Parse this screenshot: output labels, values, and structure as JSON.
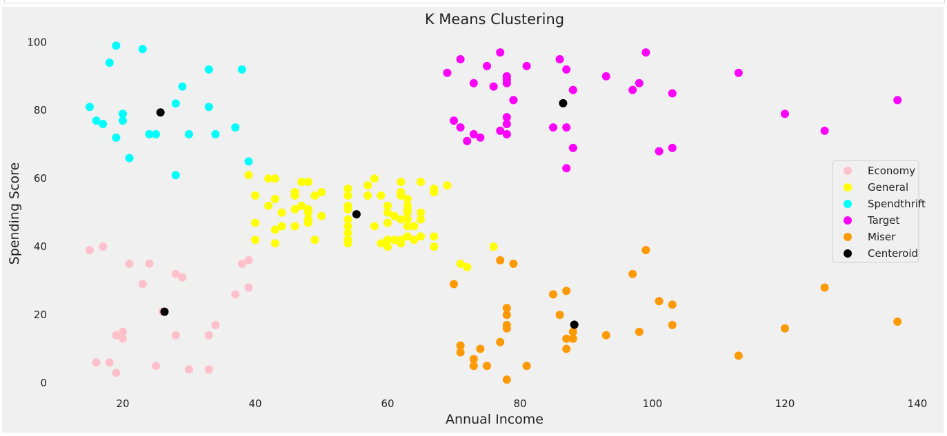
{
  "chart_data": {
    "type": "scatter",
    "title": "K Means Clustering",
    "xlabel": "Annual Income",
    "ylabel": "Spending Score",
    "xlim": [
      6,
      142
    ],
    "ylim": [
      -5,
      105
    ],
    "xticks": [
      20,
      40,
      60,
      80,
      100,
      120,
      140
    ],
    "yticks": [
      0,
      20,
      40,
      60,
      80,
      100
    ],
    "grid": false,
    "background": "#f0f0f0",
    "legend_position": "right",
    "series": [
      {
        "name": "Economy",
        "color": "#ffc0cb",
        "points": [
          [
            15,
            39
          ],
          [
            17,
            40
          ],
          [
            21,
            35
          ],
          [
            24,
            35
          ],
          [
            23,
            29
          ],
          [
            28,
            32
          ],
          [
            29,
            31
          ],
          [
            38,
            35
          ],
          [
            39,
            36
          ],
          [
            37,
            26
          ],
          [
            39,
            28
          ],
          [
            34,
            17
          ],
          [
            26,
            21
          ],
          [
            19,
            14
          ],
          [
            20,
            15
          ],
          [
            20,
            13
          ],
          [
            28,
            14
          ],
          [
            33,
            14
          ],
          [
            16,
            6
          ],
          [
            18,
            6
          ],
          [
            19,
            3
          ],
          [
            25,
            5
          ],
          [
            30,
            4
          ],
          [
            33,
            4
          ]
        ]
      },
      {
        "name": "General",
        "color": "#ffff00",
        "points": [
          [
            39,
            61
          ],
          [
            40,
            55
          ],
          [
            40,
            47
          ],
          [
            40,
            42
          ],
          [
            42,
            60
          ],
          [
            42,
            52
          ],
          [
            43,
            60
          ],
          [
            43,
            54
          ],
          [
            43,
            45
          ],
          [
            43,
            41
          ],
          [
            44,
            50
          ],
          [
            44,
            46
          ],
          [
            46,
            56
          ],
          [
            46,
            55
          ],
          [
            46,
            51
          ],
          [
            46,
            46
          ],
          [
            47,
            59
          ],
          [
            47,
            52
          ],
          [
            48,
            59
          ],
          [
            48,
            51
          ],
          [
            48,
            50
          ],
          [
            48,
            48
          ],
          [
            48,
            47
          ],
          [
            49,
            55
          ],
          [
            49,
            42
          ],
          [
            50,
            56
          ],
          [
            50,
            49
          ],
          [
            54,
            57
          ],
          [
            54,
            55
          ],
          [
            54,
            52
          ],
          [
            54,
            51
          ],
          [
            54,
            48
          ],
          [
            54,
            46
          ],
          [
            54,
            44
          ],
          [
            54,
            42
          ],
          [
            54,
            41
          ],
          [
            57,
            58
          ],
          [
            57,
            55
          ],
          [
            58,
            60
          ],
          [
            58,
            46
          ],
          [
            59,
            55
          ],
          [
            59,
            41
          ],
          [
            60,
            52
          ],
          [
            60,
            50
          ],
          [
            60,
            47
          ],
          [
            60,
            42
          ],
          [
            60,
            40
          ],
          [
            61,
            49
          ],
          [
            61,
            42
          ],
          [
            62,
            59
          ],
          [
            62,
            56
          ],
          [
            62,
            55
          ],
          [
            62,
            48
          ],
          [
            62,
            42
          ],
          [
            62,
            41
          ],
          [
            63,
            54
          ],
          [
            63,
            52
          ],
          [
            63,
            51
          ],
          [
            63,
            50
          ],
          [
            63,
            48
          ],
          [
            63,
            46
          ],
          [
            63,
            43
          ],
          [
            64,
            46
          ],
          [
            64,
            42
          ],
          [
            65,
            59
          ],
          [
            65,
            50
          ],
          [
            65,
            48
          ],
          [
            65,
            43
          ],
          [
            67,
            57
          ],
          [
            67,
            56
          ],
          [
            67,
            43
          ],
          [
            67,
            40
          ],
          [
            69,
            58
          ],
          [
            71,
            35
          ],
          [
            72,
            34
          ],
          [
            76,
            40
          ]
        ]
      },
      {
        "name": "Spendthrift",
        "color": "#00ffff",
        "points": [
          [
            15,
            81
          ],
          [
            16,
            77
          ],
          [
            17,
            76
          ],
          [
            18,
            94
          ],
          [
            19,
            99
          ],
          [
            19,
            72
          ],
          [
            20,
            77
          ],
          [
            20,
            79
          ],
          [
            21,
            66
          ],
          [
            23,
            98
          ],
          [
            24,
            73
          ],
          [
            25,
            73
          ],
          [
            28,
            82
          ],
          [
            28,
            61
          ],
          [
            29,
            87
          ],
          [
            30,
            73
          ],
          [
            33,
            92
          ],
          [
            33,
            81
          ],
          [
            34,
            73
          ],
          [
            37,
            75
          ],
          [
            38,
            92
          ],
          [
            39,
            65
          ]
        ]
      },
      {
        "name": "Target",
        "color": "#ff00ff",
        "points": [
          [
            69,
            91
          ],
          [
            70,
            77
          ],
          [
            71,
            95
          ],
          [
            71,
            75
          ],
          [
            72,
            71
          ],
          [
            73,
            88
          ],
          [
            73,
            73
          ],
          [
            74,
            72
          ],
          [
            75,
            93
          ],
          [
            76,
            87
          ],
          [
            77,
            97
          ],
          [
            77,
            74
          ],
          [
            78,
            90
          ],
          [
            78,
            89
          ],
          [
            78,
            88
          ],
          [
            78,
            78
          ],
          [
            78,
            76
          ],
          [
            78,
            73
          ],
          [
            79,
            83
          ],
          [
            81,
            93
          ],
          [
            85,
            75
          ],
          [
            86,
            95
          ],
          [
            87,
            92
          ],
          [
            87,
            75
          ],
          [
            87,
            63
          ],
          [
            88,
            86
          ],
          [
            88,
            69
          ],
          [
            93,
            90
          ],
          [
            97,
            86
          ],
          [
            98,
            88
          ],
          [
            99,
            97
          ],
          [
            101,
            68
          ],
          [
            103,
            85
          ],
          [
            103,
            69
          ],
          [
            113,
            91
          ],
          [
            120,
            79
          ],
          [
            126,
            74
          ],
          [
            137,
            83
          ]
        ]
      },
      {
        "name": "Miser",
        "color": "#ff9900",
        "points": [
          [
            70,
            29
          ],
          [
            71,
            11
          ],
          [
            71,
            9
          ],
          [
            73,
            7
          ],
          [
            73,
            5
          ],
          [
            74,
            10
          ],
          [
            75,
            5
          ],
          [
            77,
            36
          ],
          [
            77,
            12
          ],
          [
            78,
            22
          ],
          [
            78,
            20
          ],
          [
            78,
            17
          ],
          [
            78,
            16
          ],
          [
            78,
            1
          ],
          [
            79,
            35
          ],
          [
            81,
            5
          ],
          [
            85,
            26
          ],
          [
            86,
            20
          ],
          [
            87,
            27
          ],
          [
            87,
            13
          ],
          [
            87,
            10
          ],
          [
            88,
            15
          ],
          [
            88,
            13
          ],
          [
            93,
            14
          ],
          [
            97,
            32
          ],
          [
            98,
            15
          ],
          [
            99,
            39
          ],
          [
            101,
            24
          ],
          [
            103,
            23
          ],
          [
            103,
            17
          ],
          [
            113,
            8
          ],
          [
            120,
            16
          ],
          [
            126,
            28
          ],
          [
            137,
            18
          ]
        ]
      },
      {
        "name": "Centeroid",
        "color": "#000000",
        "points": [
          [
            25.7,
            79.4
          ],
          [
            26.3,
            20.9
          ],
          [
            55.3,
            49.5
          ],
          [
            86.5,
            82.1
          ],
          [
            88.2,
            17.1
          ]
        ]
      }
    ]
  }
}
